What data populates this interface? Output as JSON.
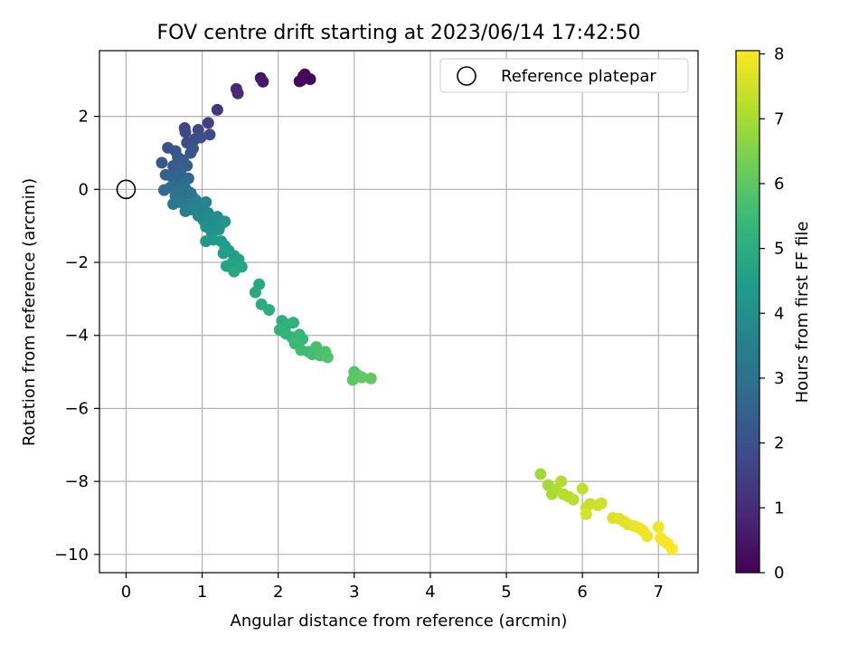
{
  "chart_data": {
    "type": "scatter",
    "title": "FOV centre drift starting at 2023/06/14 17:42:50",
    "xlabel": "Angular distance from reference (arcmin)",
    "ylabel": "Rotation from reference (arcmin)",
    "xlim": [
      -0.35,
      7.52
    ],
    "ylim": [
      -10.5,
      3.8
    ],
    "x_ticks": [
      0,
      1,
      2,
      3,
      4,
      5,
      6,
      7
    ],
    "y_ticks": [
      -10,
      -8,
      -6,
      -4,
      -2,
      0,
      2
    ],
    "x_tick_labels": [
      "0",
      "1",
      "2",
      "3",
      "4",
      "5",
      "6",
      "7"
    ],
    "y_tick_labels": [
      "−10",
      "−8",
      "−6",
      "−4",
      "−2",
      "0",
      "2"
    ],
    "grid": true,
    "legend": {
      "position": "top-right",
      "entries": [
        "Reference platepar"
      ]
    },
    "colormap": "viridis",
    "colorbar": {
      "label": "Hours from first FF file",
      "range": [
        0,
        8.05
      ],
      "ticks": [
        0,
        1,
        2,
        3,
        4,
        5,
        6,
        7,
        8
      ],
      "tick_labels": [
        "0",
        "1",
        "2",
        "3",
        "4",
        "5",
        "6",
        "7",
        "8"
      ]
    },
    "reference_point": {
      "x": 0,
      "y": 0,
      "label": "Reference platepar"
    },
    "points": [
      {
        "x": 2.35,
        "y": 3.15,
        "t": 0.0
      },
      {
        "x": 2.3,
        "y": 2.98,
        "t": 0.05
      },
      {
        "x": 2.42,
        "y": 3.02,
        "t": 0.1
      },
      {
        "x": 2.33,
        "y": 3.1,
        "t": 0.15
      },
      {
        "x": 2.28,
        "y": 2.96,
        "t": 0.2
      },
      {
        "x": 1.77,
        "y": 3.05,
        "t": 0.45
      },
      {
        "x": 1.8,
        "y": 2.95,
        "t": 0.55
      },
      {
        "x": 1.45,
        "y": 2.75,
        "t": 0.85
      },
      {
        "x": 1.47,
        "y": 2.63,
        "t": 0.95
      },
      {
        "x": 1.2,
        "y": 2.18,
        "t": 1.3
      },
      {
        "x": 1.08,
        "y": 1.82,
        "t": 1.55
      },
      {
        "x": 0.77,
        "y": 1.68,
        "t": 1.65
      },
      {
        "x": 0.78,
        "y": 1.57,
        "t": 1.7
      },
      {
        "x": 0.95,
        "y": 1.63,
        "t": 1.75
      },
      {
        "x": 1.1,
        "y": 1.5,
        "t": 1.8
      },
      {
        "x": 0.8,
        "y": 1.28,
        "t": 1.85
      },
      {
        "x": 0.9,
        "y": 1.37,
        "t": 1.9
      },
      {
        "x": 0.98,
        "y": 1.42,
        "t": 1.95
      },
      {
        "x": 0.55,
        "y": 1.14,
        "t": 2.0
      },
      {
        "x": 0.65,
        "y": 1.05,
        "t": 2.05
      },
      {
        "x": 0.85,
        "y": 1.0,
        "t": 2.1
      },
      {
        "x": 0.88,
        "y": 1.12,
        "t": 2.15
      },
      {
        "x": 0.68,
        "y": 0.88,
        "t": 2.2
      },
      {
        "x": 0.47,
        "y": 0.73,
        "t": 2.25
      },
      {
        "x": 0.62,
        "y": 0.64,
        "t": 2.3
      },
      {
        "x": 0.75,
        "y": 0.8,
        "t": 2.35
      },
      {
        "x": 0.8,
        "y": 0.65,
        "t": 2.4
      },
      {
        "x": 0.7,
        "y": 0.52,
        "t": 2.45
      },
      {
        "x": 0.52,
        "y": 0.4,
        "t": 2.5
      },
      {
        "x": 0.6,
        "y": 0.35,
        "t": 2.55
      },
      {
        "x": 0.72,
        "y": 0.42,
        "t": 2.6
      },
      {
        "x": 0.66,
        "y": 0.28,
        "t": 2.65
      },
      {
        "x": 0.82,
        "y": 0.3,
        "t": 2.7
      },
      {
        "x": 0.76,
        "y": 0.18,
        "t": 2.75
      },
      {
        "x": 0.62,
        "y": 0.1,
        "t": 2.8
      },
      {
        "x": 0.5,
        "y": -0.02,
        "t": 2.85
      },
      {
        "x": 0.58,
        "y": 0.05,
        "t": 2.9
      },
      {
        "x": 0.68,
        "y": -0.05,
        "t": 2.95
      },
      {
        "x": 0.78,
        "y": 0.02,
        "t": 3.0
      },
      {
        "x": 0.65,
        "y": -0.18,
        "t": 3.05
      },
      {
        "x": 0.73,
        "y": -0.25,
        "t": 3.1
      },
      {
        "x": 0.85,
        "y": -0.1,
        "t": 3.15
      },
      {
        "x": 0.88,
        "y": -0.22,
        "t": 3.2
      },
      {
        "x": 0.62,
        "y": -0.4,
        "t": 3.25
      },
      {
        "x": 0.7,
        "y": -0.35,
        "t": 3.3
      },
      {
        "x": 0.8,
        "y": -0.45,
        "t": 3.35
      },
      {
        "x": 0.92,
        "y": -0.3,
        "t": 3.4
      },
      {
        "x": 0.97,
        "y": -0.45,
        "t": 3.45
      },
      {
        "x": 0.78,
        "y": -0.6,
        "t": 3.5
      },
      {
        "x": 0.86,
        "y": -0.55,
        "t": 3.55
      },
      {
        "x": 1.0,
        "y": -0.55,
        "t": 3.6
      },
      {
        "x": 1.05,
        "y": -0.35,
        "t": 3.65
      },
      {
        "x": 1.08,
        "y": -0.65,
        "t": 3.7
      },
      {
        "x": 0.95,
        "y": -0.72,
        "t": 3.75
      },
      {
        "x": 1.02,
        "y": -0.85,
        "t": 3.8
      },
      {
        "x": 1.1,
        "y": -0.8,
        "t": 3.85
      },
      {
        "x": 1.15,
        "y": -0.95,
        "t": 3.9
      },
      {
        "x": 1.05,
        "y": -1.02,
        "t": 3.95
      },
      {
        "x": 1.2,
        "y": -0.75,
        "t": 4.0
      },
      {
        "x": 1.25,
        "y": -0.95,
        "t": 4.05
      },
      {
        "x": 1.12,
        "y": -1.15,
        "t": 4.1
      },
      {
        "x": 1.22,
        "y": -1.1,
        "t": 4.15
      },
      {
        "x": 1.3,
        "y": -0.88,
        "t": 4.2
      },
      {
        "x": 1.05,
        "y": -1.42,
        "t": 4.25
      },
      {
        "x": 1.15,
        "y": -1.38,
        "t": 4.3
      },
      {
        "x": 1.25,
        "y": -1.42,
        "t": 4.35
      },
      {
        "x": 1.3,
        "y": -1.55,
        "t": 4.4
      },
      {
        "x": 1.35,
        "y": -1.68,
        "t": 4.45
      },
      {
        "x": 1.28,
        "y": -1.75,
        "t": 4.5
      },
      {
        "x": 1.42,
        "y": -1.82,
        "t": 4.55
      },
      {
        "x": 1.48,
        "y": -1.92,
        "t": 4.6
      },
      {
        "x": 1.4,
        "y": -2.0,
        "t": 4.65
      },
      {
        "x": 1.32,
        "y": -2.1,
        "t": 4.7
      },
      {
        "x": 1.52,
        "y": -2.12,
        "t": 4.75
      },
      {
        "x": 1.42,
        "y": -2.25,
        "t": 4.8
      },
      {
        "x": 1.75,
        "y": -2.6,
        "t": 4.85
      },
      {
        "x": 1.7,
        "y": -2.82,
        "t": 4.9
      },
      {
        "x": 1.78,
        "y": -3.15,
        "t": 4.95
      },
      {
        "x": 1.88,
        "y": -3.3,
        "t": 5.0
      },
      {
        "x": 2.05,
        "y": -3.6,
        "t": 5.05
      },
      {
        "x": 2.12,
        "y": -3.7,
        "t": 5.1
      },
      {
        "x": 2.2,
        "y": -3.65,
        "t": 5.15
      },
      {
        "x": 2.02,
        "y": -3.85,
        "t": 5.2
      },
      {
        "x": 2.1,
        "y": -3.95,
        "t": 5.25
      },
      {
        "x": 2.18,
        "y": -4.05,
        "t": 5.3
      },
      {
        "x": 2.28,
        "y": -3.98,
        "t": 5.35
      },
      {
        "x": 2.32,
        "y": -4.1,
        "t": 5.4
      },
      {
        "x": 2.22,
        "y": -4.22,
        "t": 5.45
      },
      {
        "x": 2.3,
        "y": -4.4,
        "t": 5.5
      },
      {
        "x": 2.4,
        "y": -4.45,
        "t": 5.55
      },
      {
        "x": 2.45,
        "y": -4.52,
        "t": 5.6
      },
      {
        "x": 2.5,
        "y": -4.32,
        "t": 5.65
      },
      {
        "x": 2.55,
        "y": -4.55,
        "t": 5.7
      },
      {
        "x": 2.62,
        "y": -4.45,
        "t": 5.75
      },
      {
        "x": 2.65,
        "y": -4.6,
        "t": 5.8
      },
      {
        "x": 3.0,
        "y": -5.0,
        "t": 5.9
      },
      {
        "x": 3.05,
        "y": -5.1,
        "t": 5.95
      },
      {
        "x": 2.98,
        "y": -5.22,
        "t": 6.0
      },
      {
        "x": 3.1,
        "y": -5.15,
        "t": 6.05
      },
      {
        "x": 3.22,
        "y": -5.18,
        "t": 6.1
      },
      {
        "x": 5.45,
        "y": -7.8,
        "t": 6.9
      },
      {
        "x": 5.55,
        "y": -8.1,
        "t": 6.95
      },
      {
        "x": 5.6,
        "y": -8.35,
        "t": 7.0
      },
      {
        "x": 5.65,
        "y": -8.22,
        "t": 7.05
      },
      {
        "x": 5.72,
        "y": -8.0,
        "t": 7.1
      },
      {
        "x": 5.75,
        "y": -8.35,
        "t": 7.15
      },
      {
        "x": 5.82,
        "y": -8.42,
        "t": 7.2
      },
      {
        "x": 5.88,
        "y": -8.5,
        "t": 7.25
      },
      {
        "x": 6.0,
        "y": -8.2,
        "t": 7.3
      },
      {
        "x": 6.05,
        "y": -8.72,
        "t": 7.35
      },
      {
        "x": 6.1,
        "y": -8.62,
        "t": 7.4
      },
      {
        "x": 6.2,
        "y": -8.65,
        "t": 7.45
      },
      {
        "x": 6.25,
        "y": -8.6,
        "t": 7.5
      },
      {
        "x": 6.05,
        "y": -8.9,
        "t": 7.55
      },
      {
        "x": 6.4,
        "y": -9.0,
        "t": 7.6
      },
      {
        "x": 6.48,
        "y": -9.02,
        "t": 7.65
      },
      {
        "x": 6.55,
        "y": -9.1,
        "t": 7.7
      },
      {
        "x": 6.6,
        "y": -9.18,
        "t": 7.75
      },
      {
        "x": 6.68,
        "y": -9.22,
        "t": 7.8
      },
      {
        "x": 6.75,
        "y": -9.28,
        "t": 7.85
      },
      {
        "x": 6.8,
        "y": -9.35,
        "t": 7.88
      },
      {
        "x": 6.85,
        "y": -9.5,
        "t": 7.9
      },
      {
        "x": 7.0,
        "y": -9.25,
        "t": 7.92
      },
      {
        "x": 7.03,
        "y": -9.55,
        "t": 7.95
      },
      {
        "x": 7.08,
        "y": -9.65,
        "t": 7.98
      },
      {
        "x": 7.12,
        "y": -9.7,
        "t": 8.0
      },
      {
        "x": 7.18,
        "y": -9.85,
        "t": 8.05
      }
    ]
  }
}
